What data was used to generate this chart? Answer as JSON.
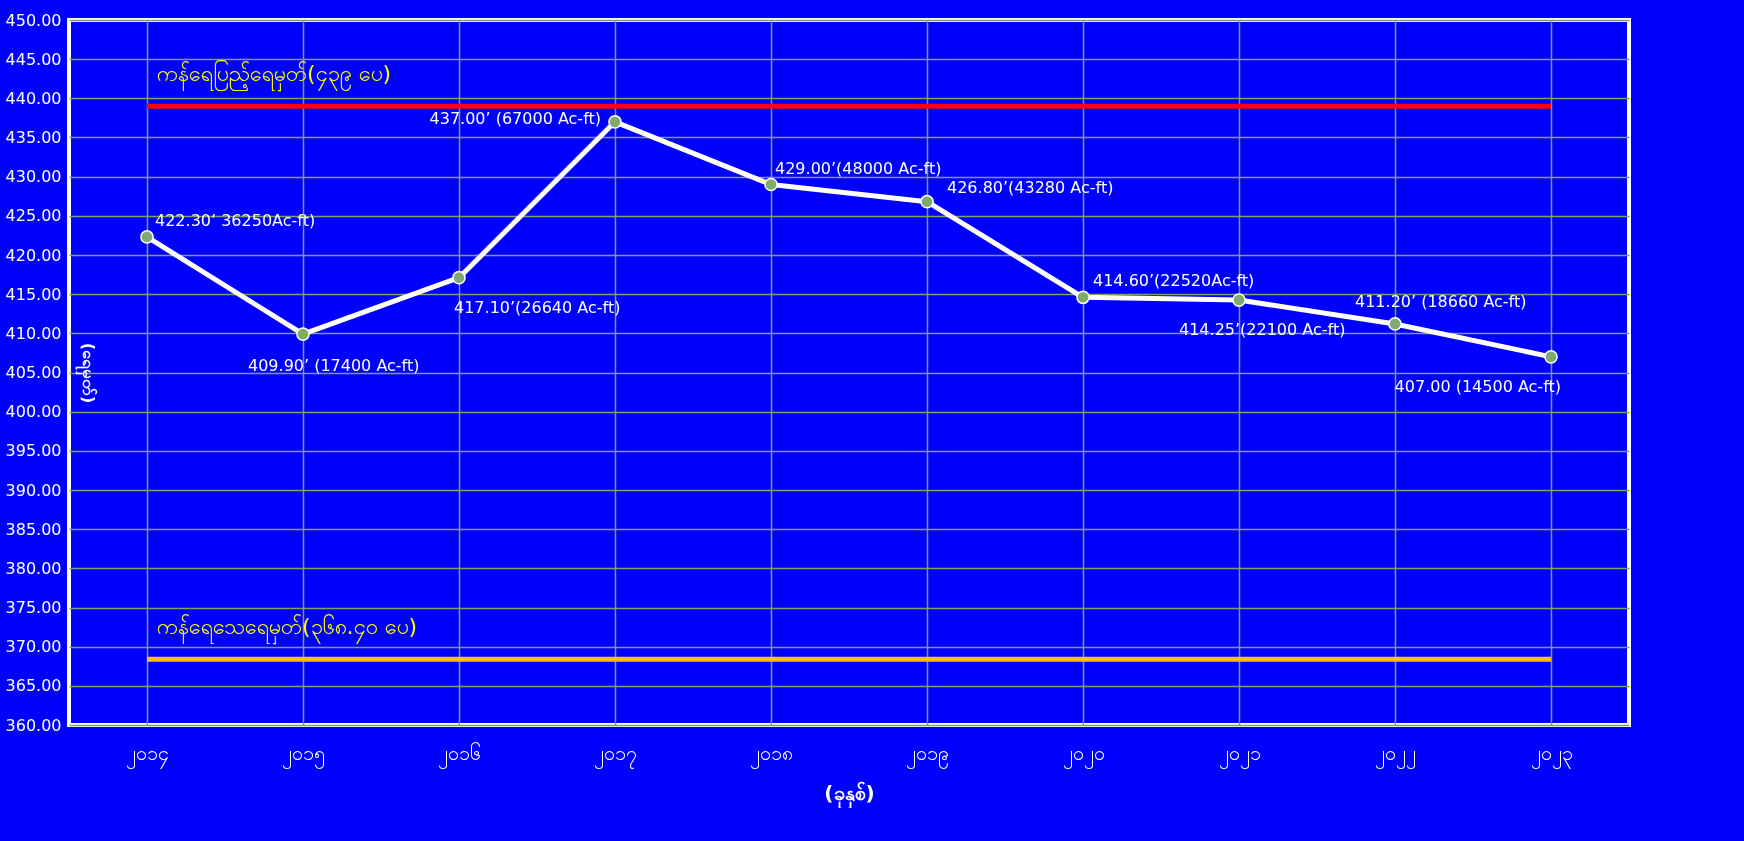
{
  "chart_data": {
    "type": "line",
    "xlabel": "(ခုနှစ်)",
    "ylabel": "(ရေမှတ်)",
    "categories": [
      "၂၀၁၄",
      "၂၀၁၅",
      "၂၀၁၆",
      "၂၀၁၇",
      "၂၀၁၈",
      "၂၀၁၉",
      "၂၀၂၀",
      "၂၀၂၁",
      "၂၀၂၂",
      "၂၀၂၃"
    ],
    "series": [
      {
        "color": "#ffffff",
        "values": [
          422.3,
          409.9,
          417.1,
          437.0,
          429.0,
          426.8,
          414.6,
          414.25,
          411.2,
          407.0
        ],
        "value_labels": [
          "422.30’ 36250Ac-ft)",
          "409.90’ (17400 Ac-ft)",
          "417.10’(26640 Ac-ft)",
          "437.00’ (67000 Ac-ft)",
          "429.00’(48000 Ac-ft)",
          "426.80’(43280 Ac-ft)",
          "414.60’(22520Ac-ft)",
          "414.25’(22100 Ac-ft)",
          "411.20’ (18660 Ac-ft)",
          "407.00 (14500 Ac-ft)"
        ]
      }
    ],
    "ylim": [
      360,
      450
    ],
    "yticks": [
      {
        "value": 360,
        "label": "360.00"
      },
      {
        "value": 365,
        "label": "365.00"
      },
      {
        "value": 370,
        "label": "370.00"
      },
      {
        "value": 375,
        "label": "375.00"
      },
      {
        "value": 380,
        "label": "380.00"
      },
      {
        "value": 385,
        "label": "385.00"
      },
      {
        "value": 390,
        "label": "390.00"
      },
      {
        "value": 395,
        "label": "395.00"
      },
      {
        "value": 400,
        "label": "400.00"
      },
      {
        "value": 405,
        "label": "405.00"
      },
      {
        "value": 410,
        "label": "410.00"
      },
      {
        "value": 415,
        "label": "415.00"
      },
      {
        "value": 420,
        "label": "420.00"
      },
      {
        "value": 425,
        "label": "425.00"
      },
      {
        "value": 430,
        "label": "430.00"
      },
      {
        "value": 435,
        "label": "435.00"
      },
      {
        "value": 440,
        "label": "440.00"
      },
      {
        "value": 445,
        "label": "445.00"
      },
      {
        "value": 450,
        "label": "450.00"
      }
    ],
    "ref_lines": [
      {
        "axis": "y",
        "value": 439,
        "label": "ကန်ရေပြည့်ရေမှတ်(၄၃၉ ပေ)",
        "color": "#ff0000"
      },
      {
        "axis": "y",
        "value": 368.4,
        "label": "ကန်ရေသေရေမှတ်(၃၆၈.၄၀ ပေ)",
        "color": "#ffc000"
      }
    ],
    "grid": true,
    "marker": "circle"
  }
}
